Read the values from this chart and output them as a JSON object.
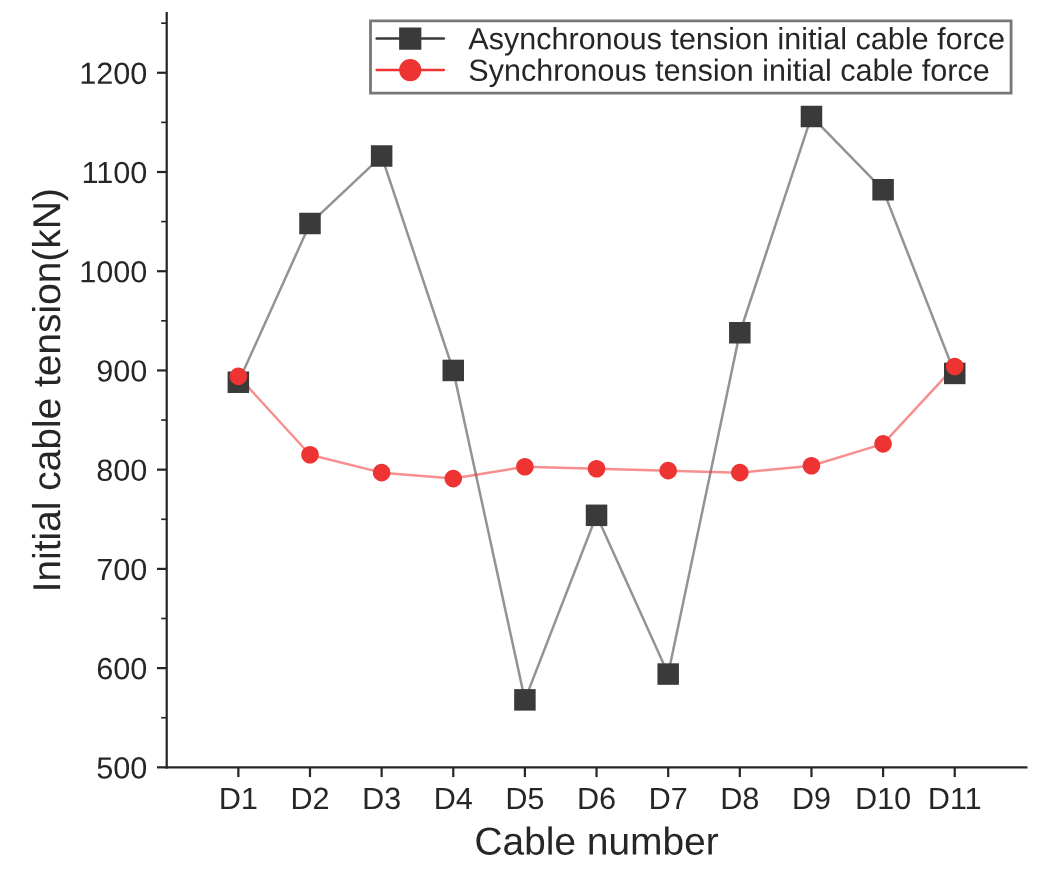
{
  "chart_data": {
    "type": "line",
    "xlabel": "Cable number",
    "ylabel": "Initial cable tension(kN)",
    "categories": [
      "D1",
      "D2",
      "D3",
      "D4",
      "D5",
      "D6",
      "D7",
      "D8",
      "D9",
      "D10",
      "D11"
    ],
    "series": [
      {
        "name": "Asynchronous tension initial cable force",
        "color": "#3a3a3a",
        "marker": "square",
        "values": [
          888,
          1048,
          1116,
          900,
          568,
          754,
          594,
          938,
          1156,
          1082,
          897
        ]
      },
      {
        "name": "Synchronous tension initial cable force",
        "color": "#ee3333",
        "marker": "circle",
        "values": [
          894,
          815,
          797,
          791,
          803,
          801,
          799,
          797,
          804,
          826,
          904
        ]
      }
    ],
    "ylim": [
      500,
      1260
    ],
    "yticks": [
      500,
      600,
      700,
      800,
      900,
      1000,
      1100,
      1200
    ],
    "grid": false,
    "legend": "top right",
    "line_style": "solid"
  }
}
